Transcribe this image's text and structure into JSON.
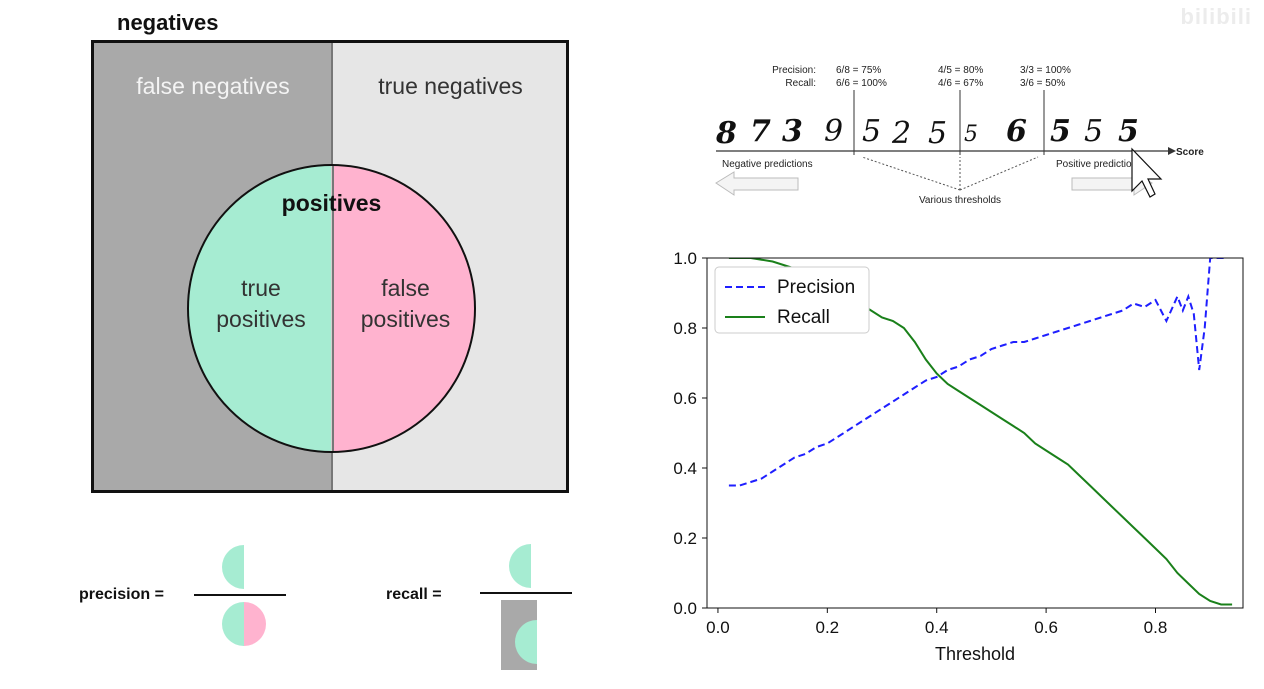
{
  "diagram": {
    "title": "negatives",
    "false_negatives": "false negatives",
    "true_negatives": "true negatives",
    "positives": "positives",
    "true_positives_line1": "true",
    "true_positives_line2": "positives",
    "false_positives_line1": "false",
    "false_positives_line2": "positives",
    "precision_label": "precision =",
    "recall_label": "recall =",
    "colors": {
      "false_negatives_bg": "#a9a9a9",
      "true_negatives_bg": "#e6e6e6",
      "true_positives": "#a6ecd2",
      "false_positives": "#ffb3cf"
    }
  },
  "mnist": {
    "precision_label": "Precision:",
    "recall_label": "Recall:",
    "thresholds": [
      {
        "precision": "6/8 = 75%",
        "recall": "6/6 = 100%"
      },
      {
        "precision": "4/5 = 80%",
        "recall": "4/6 = 67%"
      },
      {
        "precision": "3/3 = 100%",
        "recall": "3/6 = 50%"
      }
    ],
    "digits": [
      "8",
      "7",
      "3",
      "9",
      "5",
      "2",
      "5",
      "5",
      "6",
      "5",
      "5",
      "5"
    ],
    "score_label": "Score",
    "negative_predictions": "Negative predictions",
    "positive_predictions": "Positive predictions",
    "various_thresholds": "Various thresholds"
  },
  "chart_data": {
    "type": "line",
    "xlabel": "Threshold",
    "ylabel": "",
    "xlim": [
      -0.02,
      0.96
    ],
    "ylim": [
      0.0,
      1.0
    ],
    "xticks": [
      "0.0",
      "0.2",
      "0.4",
      "0.6",
      "0.8"
    ],
    "xtick_values": [
      0.0,
      0.2,
      0.4,
      0.6,
      0.8
    ],
    "yticks": [
      "0.0",
      "0.2",
      "0.4",
      "0.6",
      "0.8",
      "1.0"
    ],
    "ytick_values": [
      0.0,
      0.2,
      0.4,
      0.6,
      0.8,
      1.0
    ],
    "grid": false,
    "legend_position": "top-left",
    "series": [
      {
        "name": "Precision",
        "color": "#1f1fff",
        "style": "dashed",
        "x": [
          0.02,
          0.04,
          0.06,
          0.08,
          0.1,
          0.12,
          0.14,
          0.16,
          0.18,
          0.2,
          0.22,
          0.24,
          0.26,
          0.28,
          0.3,
          0.32,
          0.34,
          0.36,
          0.38,
          0.4,
          0.42,
          0.44,
          0.46,
          0.48,
          0.5,
          0.52,
          0.54,
          0.56,
          0.58,
          0.6,
          0.62,
          0.64,
          0.66,
          0.68,
          0.7,
          0.72,
          0.74,
          0.76,
          0.78,
          0.8,
          0.82,
          0.84,
          0.85,
          0.86,
          0.87,
          0.88,
          0.89,
          0.9,
          0.91,
          0.92,
          0.93
        ],
        "y": [
          0.35,
          0.35,
          0.36,
          0.37,
          0.39,
          0.41,
          0.43,
          0.44,
          0.46,
          0.47,
          0.49,
          0.51,
          0.53,
          0.55,
          0.57,
          0.59,
          0.61,
          0.63,
          0.65,
          0.66,
          0.68,
          0.69,
          0.71,
          0.72,
          0.74,
          0.75,
          0.76,
          0.76,
          0.77,
          0.78,
          0.79,
          0.8,
          0.81,
          0.82,
          0.83,
          0.84,
          0.85,
          0.87,
          0.86,
          0.88,
          0.82,
          0.89,
          0.85,
          0.89,
          0.84,
          0.68,
          0.8,
          1.0,
          1.0,
          1.0,
          1.0
        ]
      },
      {
        "name": "Recall",
        "color": "#1a801a",
        "style": "solid",
        "x": [
          0.02,
          0.06,
          0.1,
          0.14,
          0.18,
          0.22,
          0.26,
          0.3,
          0.32,
          0.34,
          0.36,
          0.38,
          0.4,
          0.42,
          0.44,
          0.46,
          0.48,
          0.5,
          0.52,
          0.54,
          0.56,
          0.58,
          0.6,
          0.62,
          0.64,
          0.66,
          0.68,
          0.7,
          0.72,
          0.74,
          0.76,
          0.78,
          0.8,
          0.82,
          0.84,
          0.86,
          0.88,
          0.9,
          0.92,
          0.94
        ],
        "y": [
          1.0,
          1.0,
          0.99,
          0.97,
          0.95,
          0.91,
          0.87,
          0.83,
          0.82,
          0.8,
          0.76,
          0.71,
          0.67,
          0.64,
          0.62,
          0.6,
          0.58,
          0.56,
          0.54,
          0.52,
          0.5,
          0.47,
          0.45,
          0.43,
          0.41,
          0.38,
          0.35,
          0.32,
          0.29,
          0.26,
          0.23,
          0.2,
          0.17,
          0.14,
          0.1,
          0.07,
          0.04,
          0.02,
          0.01,
          0.01
        ]
      }
    ]
  },
  "watermark": "bilibili"
}
